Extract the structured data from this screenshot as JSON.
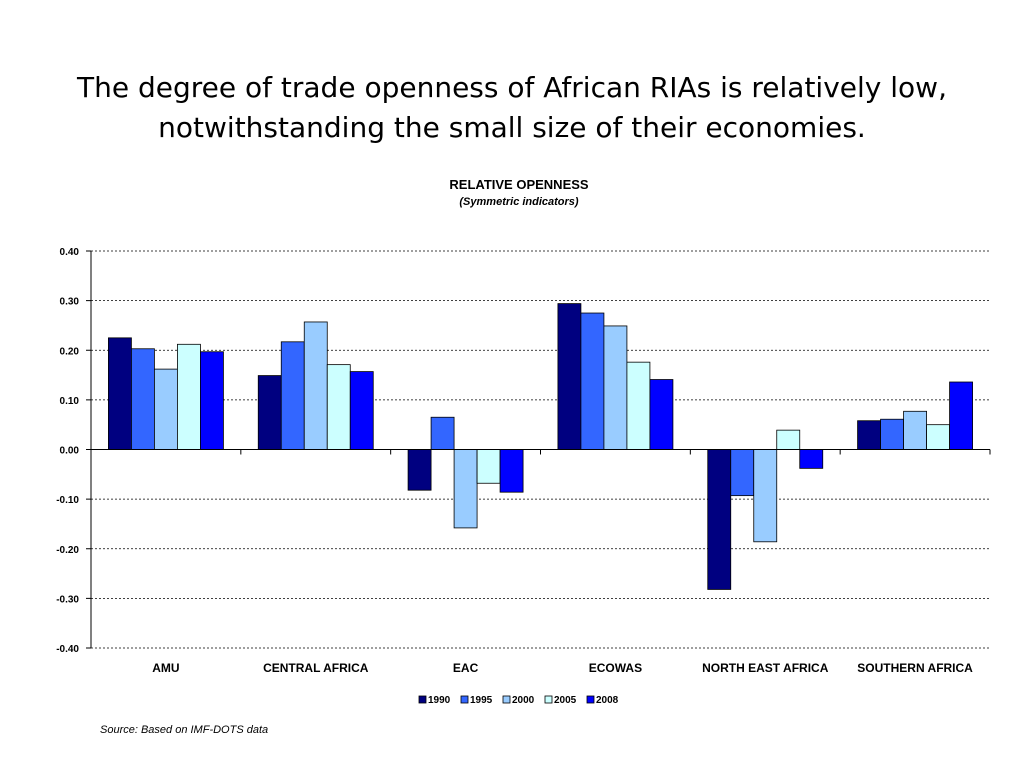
{
  "slide": {
    "title_line1": "The degree of trade openness of African RIAs is relatively low,",
    "title_line2": "notwithstanding the small size of their economies."
  },
  "source": "Source: Based on IMF-DOTS data",
  "chart_data": {
    "type": "bar",
    "title": "RELATIVE OPENNESS",
    "subtitle": "(Symmetric indicators)",
    "xlabel": "",
    "ylabel": "",
    "ylim": [
      -0.4,
      0.4
    ],
    "yticks": [
      "-0.40",
      "-0.30",
      "-0.20",
      "-0.10",
      "0.00",
      "0.10",
      "0.20",
      "0.30",
      "0.40"
    ],
    "grid": true,
    "legend_position": "bottom",
    "categories": [
      "AMU",
      "CENTRAL  AFRICA",
      "EAC",
      "ECOWAS",
      "NORTH  EAST AFRICA",
      "SOUTHERN  AFRICA"
    ],
    "series": [
      {
        "name": "1990",
        "color": "#000080",
        "values": [
          0.225,
          0.149,
          -0.082,
          0.294,
          -0.282,
          0.058
        ]
      },
      {
        "name": "1995",
        "color": "#3366ff",
        "values": [
          0.203,
          0.217,
          0.065,
          0.275,
          -0.093,
          0.061
        ]
      },
      {
        "name": "2000",
        "color": "#99ccff",
        "values": [
          0.162,
          0.257,
          -0.158,
          0.249,
          -0.186,
          0.077
        ]
      },
      {
        "name": "2005",
        "color": "#ccffff",
        "values": [
          0.212,
          0.171,
          -0.068,
          0.176,
          0.039,
          0.05
        ]
      },
      {
        "name": "2008",
        "color": "#0000ff",
        "values": [
          0.197,
          0.157,
          -0.086,
          0.141,
          -0.038,
          0.136
        ]
      }
    ]
  }
}
